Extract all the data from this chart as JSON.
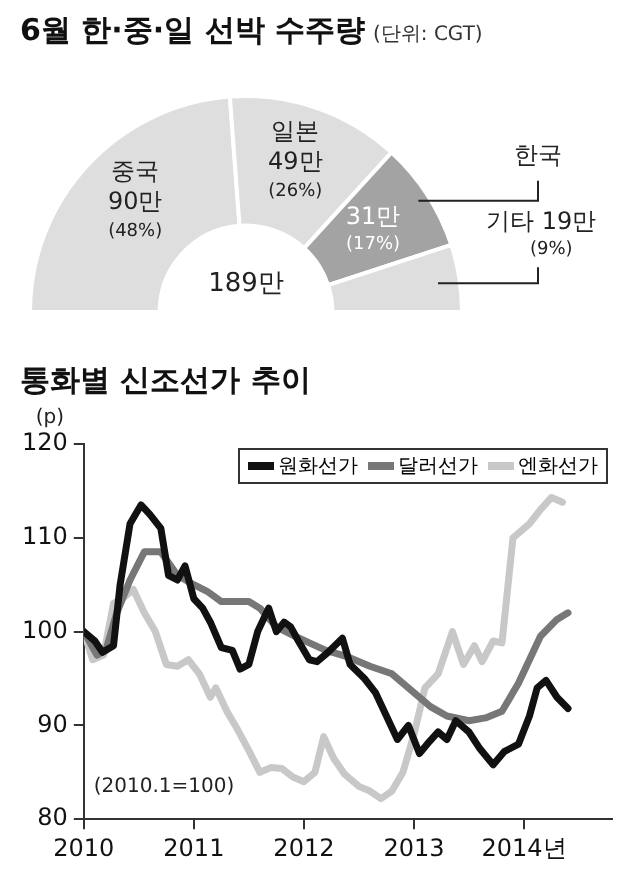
{
  "chart_data": [
    {
      "type": "donut",
      "title": "6월 한·중·일 선박 수주량",
      "subtitle": "(단위: CGT)",
      "categories": [
        "중국",
        "일본",
        "한국",
        "기타"
      ],
      "values": [
        90,
        49,
        31,
        19
      ],
      "value_labels": [
        "90만 (48%)",
        "49만 (26%)",
        "31만 (17%)",
        "19만 (9%)"
      ],
      "colors": [
        "#dedede",
        "#dedede",
        "#a3a3a3",
        "#dedede"
      ],
      "annotations": [
        "189만"
      ]
    },
    {
      "type": "line",
      "title": "통화별 신조선가 추이",
      "ylabel": "(p)",
      "legend": "top right",
      "xlim": [
        2010,
        2014.8
      ],
      "xticks": [
        2010,
        2011,
        2012,
        2013,
        {
          "value": 2014,
          "label": "2014년"
        }
      ],
      "ylim": [
        80,
        120
      ],
      "yticks": [
        80,
        90,
        100,
        110,
        120
      ],
      "annotations": [
        "(2010.1=100)"
      ],
      "series": [
        {
          "name": "원화선가",
          "color": "#111111",
          "x": [
            2010.0,
            2010.1,
            2010.17,
            2010.27,
            2010.33,
            2010.42,
            2010.52,
            2010.6,
            2010.7,
            2010.77,
            2010.85,
            2010.92,
            2011.0,
            2011.08,
            2011.15,
            2011.25,
            2011.35,
            2011.42,
            2011.5,
            2011.58,
            2011.68,
            2011.75,
            2011.82,
            2011.88,
            2011.95,
            2012.05,
            2012.12,
            2012.22,
            2012.35,
            2012.42,
            2012.55,
            2012.65,
            2012.75,
            2012.85,
            2012.95,
            2013.05,
            2013.12,
            2013.22,
            2013.3,
            2013.38,
            2013.5,
            2013.6,
            2013.72,
            2013.82,
            2013.95,
            2014.05,
            2014.12,
            2014.2,
            2014.3,
            2014.4
          ],
          "values": [
            100,
            99,
            97.8,
            98.5,
            105,
            111.5,
            113.5,
            112.5,
            111,
            106,
            105.5,
            107,
            103.5,
            102.5,
            101,
            98.3,
            98,
            96,
            96.5,
            100,
            102.5,
            100,
            101,
            100.5,
            99,
            97,
            96.8,
            97.8,
            99.3,
            96.5,
            95,
            93.5,
            91,
            88.5,
            90,
            87,
            88,
            89.3,
            88.5,
            90.5,
            89.3,
            87.5,
            85.8,
            87.2,
            88,
            91,
            94,
            94.8,
            93,
            91.8
          ]
        },
        {
          "name": "달러선가",
          "color": "#777777",
          "x": [
            2010.0,
            2010.12,
            2010.2,
            2010.3,
            2010.42,
            2010.55,
            2010.7,
            2010.85,
            2011.0,
            2011.12,
            2011.25,
            2011.5,
            2011.6,
            2011.75,
            2011.92,
            2012.05,
            2012.2,
            2012.4,
            2012.6,
            2012.8,
            2013.0,
            2013.15,
            2013.3,
            2013.5,
            2013.65,
            2013.8,
            2013.95,
            2014.05,
            2014.15,
            2014.3,
            2014.4
          ],
          "values": [
            100,
            97.5,
            98,
            102,
            105.5,
            108.5,
            108.5,
            106,
            105,
            104.3,
            103.2,
            103.2,
            102.5,
            100.5,
            99.5,
            98.8,
            98,
            97.3,
            96.3,
            95.5,
            93.5,
            92,
            91,
            90.5,
            90.8,
            91.5,
            94.5,
            97,
            99.5,
            101.3,
            102
          ]
        },
        {
          "name": "엔화선가",
          "color": "#c8c8c8",
          "x": [
            2010.0,
            2010.08,
            2010.18,
            2010.27,
            2010.35,
            2010.45,
            2010.55,
            2010.65,
            2010.75,
            2010.85,
            2010.95,
            2011.05,
            2011.15,
            2011.2,
            2011.3,
            2011.4,
            2011.5,
            2011.6,
            2011.7,
            2011.8,
            2011.9,
            2012.0,
            2012.1,
            2012.18,
            2012.27,
            2012.37,
            2012.5,
            2012.6,
            2012.7,
            2012.8,
            2012.9,
            2013.0,
            2013.1,
            2013.22,
            2013.35,
            2013.45,
            2013.55,
            2013.62,
            2013.72,
            2013.8,
            2013.9,
            2014.05,
            2014.15,
            2014.25,
            2014.35
          ],
          "values": [
            100,
            97,
            97.5,
            103,
            103.5,
            104.5,
            102,
            100,
            96.5,
            96.3,
            97,
            95.5,
            93,
            94,
            91.5,
            89.5,
            87.3,
            85,
            85.5,
            85.4,
            84.5,
            84,
            85,
            88.8,
            86.5,
            84.8,
            83.5,
            83,
            82.2,
            83,
            85,
            89,
            94,
            95.5,
            100,
            96.5,
            98.5,
            96.8,
            99,
            98.8,
            110,
            111.5,
            113,
            114.3,
            113.8
          ]
        }
      ]
    }
  ]
}
